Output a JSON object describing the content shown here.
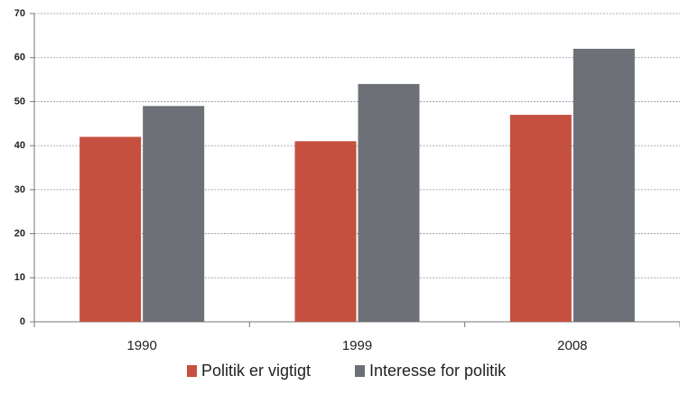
{
  "chart_data": {
    "type": "bar",
    "categories": [
      "1990",
      "1999",
      "2008"
    ],
    "series": [
      {
        "name": "Politik er vigtigt",
        "color": "#c5503f",
        "values": [
          42,
          41,
          47
        ]
      },
      {
        "name": "Interesse for politik",
        "color": "#6d7177",
        "values": [
          49,
          54,
          62
        ]
      }
    ],
    "ylim": [
      0,
      70
    ],
    "yticks": [
      0,
      10,
      20,
      30,
      40,
      50,
      60,
      70
    ],
    "grid": true,
    "legend": "bottom"
  }
}
